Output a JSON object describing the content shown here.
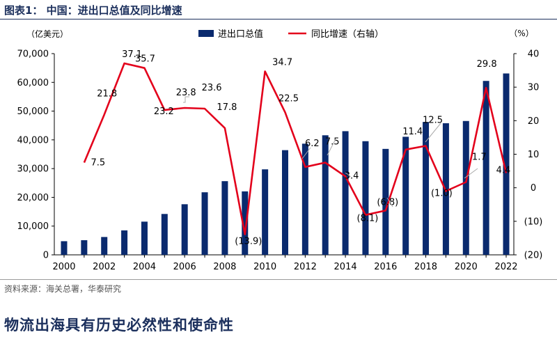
{
  "figure_title": "图表1：   中国：进出口总值及同比增速",
  "source": "资料来源：海关总署，华泰研究",
  "section_heading": "物流出海具有历史必然性和使命性",
  "colors": {
    "bar": "#0a2a6e",
    "line": "#e3001b",
    "title": "#1b2f5c"
  },
  "chart_data": {
    "type": "bar+line",
    "left_unit": "（亿美元）",
    "right_unit": "（%）",
    "x": [
      2000,
      2001,
      2002,
      2003,
      2004,
      2005,
      2006,
      2007,
      2008,
      2009,
      2010,
      2011,
      2012,
      2013,
      2014,
      2015,
      2016,
      2017,
      2018,
      2019,
      2020,
      2021,
      2022
    ],
    "x_ticks": [
      2000,
      2002,
      2004,
      2006,
      2008,
      2010,
      2012,
      2014,
      2016,
      2018,
      2020,
      2022
    ],
    "x_tick_labels": [
      "2000",
      "2002",
      "2004",
      "2006",
      "2008",
      "2010",
      "2012",
      "2014",
      "2016",
      "2018",
      "2020",
      "2022"
    ],
    "ylim_left": [
      0,
      70000
    ],
    "yticks_left": [
      0,
      10000,
      20000,
      30000,
      40000,
      50000,
      60000,
      70000
    ],
    "yticks_left_labels": [
      "0",
      "10,000",
      "20,000",
      "30,000",
      "40,000",
      "50,000",
      "60,000",
      "70,000"
    ],
    "ylim_right": [
      -20,
      40
    ],
    "yticks_right": [
      -20,
      -10,
      0,
      10,
      20,
      30,
      40
    ],
    "yticks_right_labels": [
      "(20)",
      "(10)",
      "0",
      "10",
      "20",
      "30",
      "40"
    ],
    "legend": {
      "position": "top",
      "entries": [
        "进出口总值",
        "同比增速（右轴）"
      ]
    },
    "series": [
      {
        "name": "进出口总值",
        "axis": "left",
        "kind": "bar",
        "values": [
          4743,
          5097,
          6208,
          8510,
          11546,
          14219,
          17604,
          21761,
          25632,
          22075,
          29740,
          36418,
          38671,
          41589,
          43015,
          39530,
          36856,
          41071,
          46224,
          45778,
          46559,
          60502,
          63096
        ]
      },
      {
        "name": "同比增速（右轴）",
        "axis": "right",
        "kind": "line",
        "values": [
          null,
          7.5,
          21.8,
          37.1,
          35.7,
          23.2,
          23.8,
          23.6,
          17.8,
          -13.9,
          34.7,
          22.5,
          6.2,
          7.5,
          3.4,
          -8.1,
          -6.8,
          11.4,
          12.5,
          -1.0,
          1.7,
          29.8,
          4.4
        ]
      }
    ],
    "data_labels": [
      "7.5",
      "21.8",
      "37.1",
      "35.7",
      "23.2",
      "23.8",
      "23.6",
      "17.8",
      "(13.9)",
      "34.7",
      "22.5",
      "6.2",
      "7.5",
      "3.4",
      "(8.1)",
      "(6.8)",
      "11.4",
      "12.5",
      "(1.0)",
      "1.7",
      "29.8",
      "4.4"
    ],
    "grid": false
  }
}
